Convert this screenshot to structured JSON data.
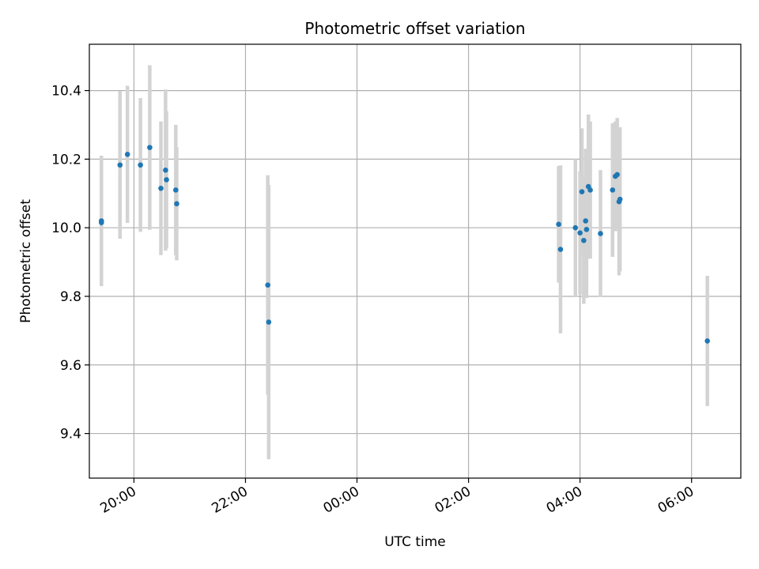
{
  "chart_data": {
    "type": "scatter",
    "title": "Photometric offset variation",
    "xlabel": "UTC time",
    "ylabel": "Photometric offset",
    "x_axis": "time",
    "xlim": [
      "19:12",
      "06:53"
    ],
    "ylim": [
      9.27,
      10.535
    ],
    "xticks": [
      {
        "time": "20:00",
        "label": "20:00"
      },
      {
        "time": "22:00",
        "label": "22:00"
      },
      {
        "time": "24:00",
        "label": "00:00"
      },
      {
        "time": "26:00",
        "label": "02:00"
      },
      {
        "time": "28:00",
        "label": "04:00"
      },
      {
        "time": "30:00",
        "label": "06:00"
      }
    ],
    "yticks": [
      {
        "value": 9.4,
        "label": "9.4"
      },
      {
        "value": 9.6,
        "label": "9.6"
      },
      {
        "value": 9.8,
        "label": "9.8"
      },
      {
        "value": 10.0,
        "label": "10.0"
      },
      {
        "value": 10.2,
        "label": "10.2"
      },
      {
        "value": 10.4,
        "label": "10.4"
      }
    ],
    "grid": true,
    "colors": {
      "marker": "#1f77b4",
      "errorbar": "#d3d3d3",
      "grid": "#b0b0b0"
    },
    "points": [
      {
        "time": "19:25",
        "y": 10.02,
        "err": 0.19
      },
      {
        "time": "19:25",
        "y": 10.015,
        "err": 0.18
      },
      {
        "time": "19:45",
        "y": 10.183,
        "err": 0.215
      },
      {
        "time": "19:53",
        "y": 10.214,
        "err": 0.2
      },
      {
        "time": "20:07",
        "y": 10.183,
        "err": 0.195
      },
      {
        "time": "20:17",
        "y": 10.234,
        "err": 0.24
      },
      {
        "time": "20:29",
        "y": 10.115,
        "err": 0.195
      },
      {
        "time": "20:34",
        "y": 10.168,
        "err": 0.235
      },
      {
        "time": "20:35",
        "y": 10.14,
        "err": 0.2
      },
      {
        "time": "20:45",
        "y": 10.11,
        "err": 0.19
      },
      {
        "time": "20:46",
        "y": 10.07,
        "err": 0.165
      },
      {
        "time": "22:24",
        "y": 9.833,
        "err": 0.32
      },
      {
        "time": "22:25",
        "y": 9.725,
        "err": 0.4
      },
      {
        "time": "03:37",
        "y": 10.01,
        "err": 0.17
      },
      {
        "time": "03:39",
        "y": 9.937,
        "err": 0.245
      },
      {
        "time": "03:55",
        "y": 10.0,
        "err": 0.2
      },
      {
        "time": "04:00",
        "y": 9.985,
        "err": 0.18
      },
      {
        "time": "04:02",
        "y": 10.105,
        "err": 0.185
      },
      {
        "time": "04:04",
        "y": 9.963,
        "err": 0.185
      },
      {
        "time": "04:06",
        "y": 10.02,
        "err": 0.21
      },
      {
        "time": "04:07",
        "y": 9.995,
        "err": 0.2
      },
      {
        "time": "04:09",
        "y": 10.12,
        "err": 0.21
      },
      {
        "time": "04:11",
        "y": 10.11,
        "err": 0.2
      },
      {
        "time": "04:22",
        "y": 9.983,
        "err": 0.185
      },
      {
        "time": "04:35",
        "y": 10.11,
        "err": 0.195
      },
      {
        "time": "04:38",
        "y": 10.15,
        "err": 0.16
      },
      {
        "time": "04:40",
        "y": 10.155,
        "err": 0.165
      },
      {
        "time": "04:42",
        "y": 10.076,
        "err": 0.215
      },
      {
        "time": "04:43",
        "y": 10.083,
        "err": 0.21
      },
      {
        "time": "06:17",
        "y": 9.67,
        "err": 0.19
      }
    ]
  }
}
